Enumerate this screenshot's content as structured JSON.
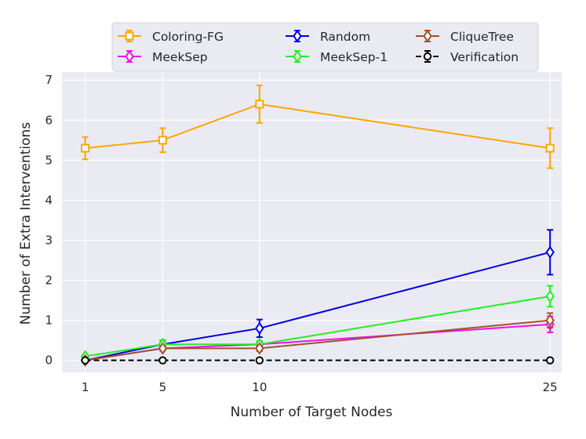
{
  "chart_data": {
    "type": "line",
    "xlabel": "Number of Target Nodes",
    "ylabel": "Number of Extra Interventions",
    "x": [
      1,
      5,
      10,
      25
    ],
    "x_ticks": [
      "1",
      "5",
      "10",
      "25"
    ],
    "y_ticks": [
      "0",
      "1",
      "2",
      "3",
      "4",
      "5",
      "6",
      "7"
    ],
    "xlim": [
      -0.2,
      25.6
    ],
    "ylim": [
      -0.3,
      7.2
    ],
    "grid": true,
    "legend_position": "top-center",
    "series": [
      {
        "name": "Coloring-FG",
        "color": "#ffa500",
        "marker": "square",
        "dash": false,
        "values": [
          5.3,
          5.5,
          6.4,
          5.3
        ],
        "errors": [
          0.28,
          0.3,
          0.47,
          0.5
        ]
      },
      {
        "name": "MeekSep",
        "color": "#ee11ee",
        "marker": "diamond",
        "dash": false,
        "values": [
          0.0,
          0.3,
          0.4,
          0.9
        ],
        "errors": [
          0.04,
          0.06,
          0.07,
          0.2
        ]
      },
      {
        "name": "Random",
        "color": "#0000dd",
        "marker": "diamond",
        "dash": false,
        "values": [
          0.0,
          0.4,
          0.8,
          2.7
        ],
        "errors": [
          0.04,
          0.1,
          0.22,
          0.56
        ]
      },
      {
        "name": "MeekSep-1",
        "color": "#22ee22",
        "marker": "diamond",
        "dash": false,
        "values": [
          0.1,
          0.4,
          0.4,
          1.6
        ],
        "errors": [
          0.04,
          0.1,
          0.08,
          0.26
        ]
      },
      {
        "name": "CliqueTree",
        "color": "#a0522d",
        "marker": "diamond",
        "dash": false,
        "values": [
          0.0,
          0.3,
          0.3,
          1.0
        ],
        "errors": [
          0.03,
          0.05,
          0.07,
          0.18
        ]
      },
      {
        "name": "Verification",
        "color": "#000000",
        "marker": "circle",
        "dash": true,
        "values": [
          0.0,
          0.0,
          0.0,
          0.0
        ],
        "errors": [
          0.0,
          0.0,
          0.0,
          0.0
        ]
      }
    ]
  }
}
